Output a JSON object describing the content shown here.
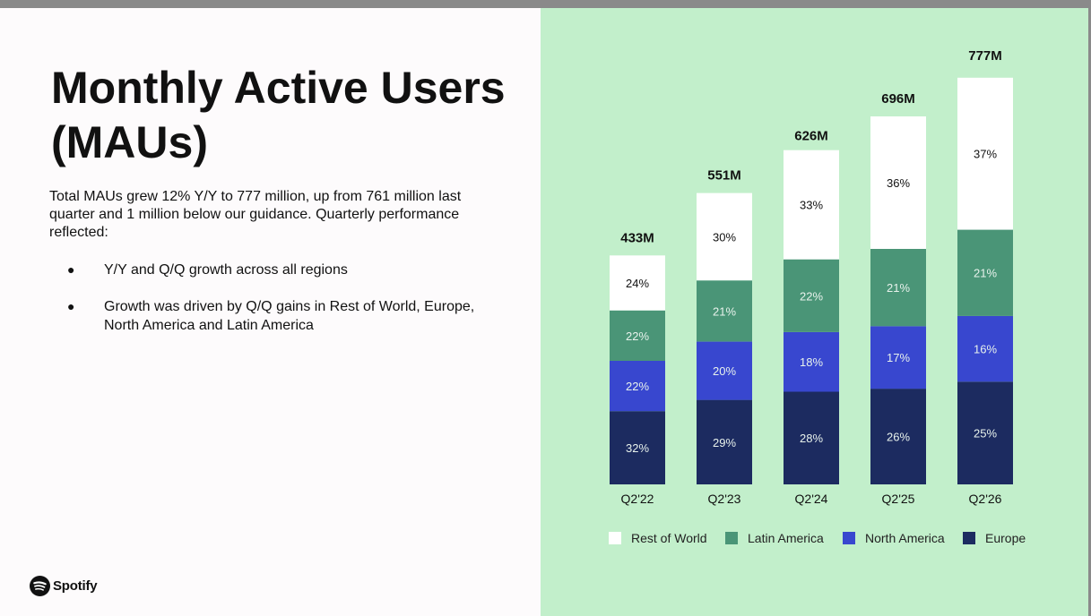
{
  "slide": {
    "title": "Monthly Active Users (MAUs)",
    "description": "Total MAUs grew 12% Y/Y to 777 million, up from 761 million last quarter and 1 million below our guidance. Quarterly performance reflected:",
    "bullets": [
      "Y/Y and Q/Q growth across all regions",
      "Growth was driven by Q/Q gains in Rest of World, Europe, North America and Latin America"
    ],
    "bullet_marker": "●",
    "brand": {
      "name": "Spotify",
      "icon": "spotify-logo-icon"
    }
  },
  "colors": {
    "rest_of_world": "#ffffff",
    "latin_america": "#4a9577",
    "north_america": "#3847cf",
    "europe": "#1c2b60",
    "panel": "#c2efcb"
  },
  "chart_data": {
    "type": "bar",
    "stacked": true,
    "title": "",
    "xlabel": "",
    "ylabel": "",
    "ylim": [
      0,
      800
    ],
    "grid": false,
    "legend_position": "bottom",
    "categories": [
      "Q2'22",
      "Q2'23",
      "Q2'24",
      "Q2'25",
      "Q2'26"
    ],
    "totals": [
      433,
      551,
      626,
      696,
      777
    ],
    "total_labels": [
      "433M",
      "551M",
      "626M",
      "696M",
      "777M"
    ],
    "series": [
      {
        "name": "Europe",
        "color": "#1c2b60",
        "share": [
          32,
          29,
          28,
          26,
          25
        ],
        "labels": [
          "32%",
          "29%",
          "28%",
          "26%",
          "25%"
        ]
      },
      {
        "name": "North America",
        "color": "#3847cf",
        "share": [
          22,
          20,
          18,
          17,
          16
        ],
        "labels": [
          "22%",
          "20%",
          "18%",
          "17%",
          "16%"
        ]
      },
      {
        "name": "Latin America",
        "color": "#4a9577",
        "share": [
          22,
          21,
          22,
          21,
          21
        ],
        "labels": [
          "22%",
          "21%",
          "22%",
          "21%",
          "21%"
        ]
      },
      {
        "name": "Rest of World",
        "color": "#ffffff",
        "share": [
          24,
          30,
          33,
          36,
          37
        ],
        "labels": [
          "24%",
          "30%",
          "33%",
          "36%",
          "37%"
        ]
      }
    ],
    "legend_order": [
      "Rest of World",
      "Latin America",
      "North America",
      "Europe"
    ]
  }
}
